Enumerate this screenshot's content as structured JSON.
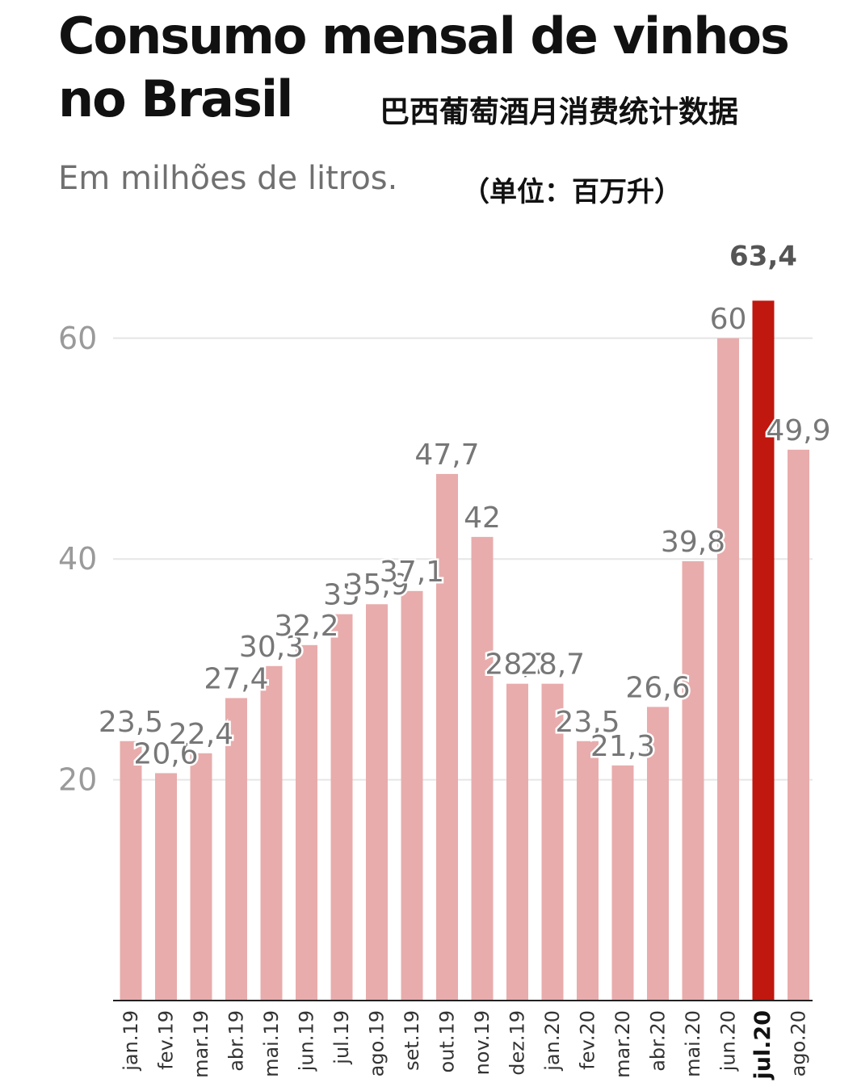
{
  "header": {
    "title": "Consumo mensal de vinhos no Brasil",
    "title_cn": "巴西葡萄酒月消费统计数据",
    "subtitle": "Em milhões de litros.",
    "subtitle_cn": "（单位：百万升）"
  },
  "colors": {
    "bar": "#e8acac",
    "highlight": "#c0170f",
    "grid": "#e6e6e6",
    "axis_text": "#9a9a9a",
    "label_text": "#777777"
  },
  "chart_data": {
    "type": "bar",
    "title": "Consumo mensal de vinhos no Brasil",
    "subtitle": "Em milhões de litros.",
    "xlabel": "",
    "ylabel": "",
    "ylim": [
      0,
      63.4
    ],
    "yticks": [
      20,
      40,
      60
    ],
    "grid": true,
    "highlight_category": "jul.20",
    "categories": [
      "jan.19",
      "fev.19",
      "mar.19",
      "abr.19",
      "mai.19",
      "jun.19",
      "jul.19",
      "ago.19",
      "set.19",
      "out.19",
      "nov.19",
      "dez.19",
      "jan.20",
      "fev.20",
      "mar.20",
      "abr.20",
      "mai.20",
      "jun.20",
      "jul.20",
      "ago.20"
    ],
    "values": [
      23.5,
      20.6,
      22.4,
      27.4,
      30.3,
      32.2,
      35,
      35.9,
      37.1,
      47.7,
      42,
      28.7,
      28.7,
      23.5,
      21.3,
      26.6,
      39.8,
      60,
      63.4,
      49.9
    ],
    "value_labels": [
      "23,5",
      "20,6",
      "22,4",
      "27,4",
      "30,3",
      "32,2",
      "35",
      "35,9",
      "37,1",
      "47,7",
      "42",
      "28,7",
      "28,7",
      "23,5",
      "21,3",
      "26,6",
      "39,8",
      "60",
      "63,4",
      "49,9"
    ]
  }
}
